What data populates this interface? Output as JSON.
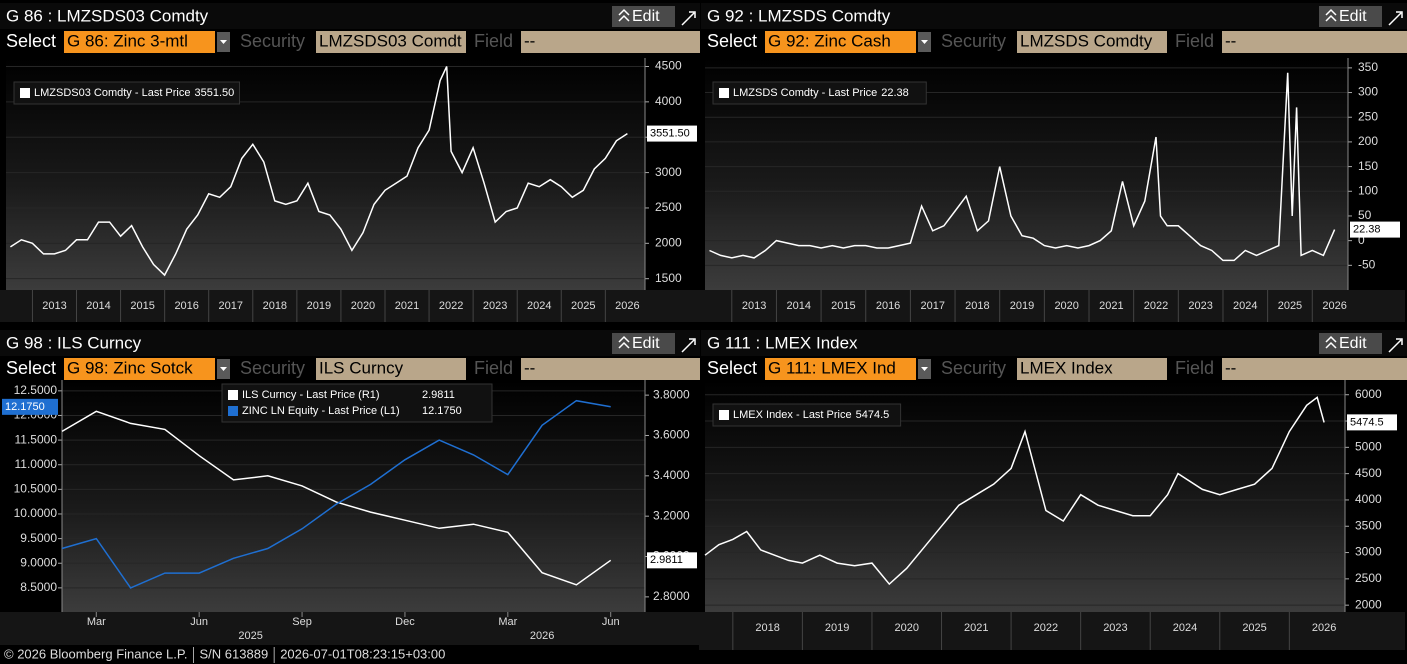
{
  "panels": [
    {
      "title": "G 86 : LMZSDS03 Comdty",
      "edit": "Edit",
      "select_label": "Select",
      "select": "G 86: Zinc 3-mtl",
      "security_label": "Security",
      "security": "LMZSDS03 Comdt",
      "field_label": "Field",
      "field": "--"
    },
    {
      "title": "G 92 : LMZSDS Comdty",
      "edit": "Edit",
      "select_label": "Select",
      "select": "G 92: Zinc Cash",
      "security_label": "Security",
      "security": "LMZSDS Comdty",
      "field_label": "Field",
      "field": "--"
    },
    {
      "title": "G 98 : ILS Curncy",
      "edit": "Edit",
      "select_label": "Select",
      "select": "G 98: Zinc Sotck",
      "security_label": "Security",
      "security": "ILS Curncy",
      "field_label": "Field",
      "field": "--"
    },
    {
      "title": "G 111 : LMEX Index",
      "edit": "Edit",
      "select_label": "Select",
      "select": "G 111: LMEX Ind",
      "security_label": "Security",
      "security": "LMEX Index",
      "field_label": "Field",
      "field": "--"
    }
  ],
  "chart_data": [
    {
      "type": "line",
      "xlim": [
        2012.4,
        2026.9
      ],
      "ylim": [
        1340,
        4620
      ],
      "yticks": [
        1500,
        2000,
        2500,
        3000,
        3500,
        4000,
        4500
      ],
      "xticks": [
        2013,
        2014,
        2015,
        2016,
        2017,
        2018,
        2019,
        2020,
        2021,
        2022,
        2023,
        2024,
        2025,
        2026
      ],
      "grid": true,
      "x": [
        2012.5,
        2012.75,
        2013.0,
        2013.25,
        2013.5,
        2013.75,
        2014.0,
        2014.25,
        2014.5,
        2014.75,
        2015.0,
        2015.25,
        2015.5,
        2015.75,
        2016.0,
        2016.25,
        2016.5,
        2016.75,
        2017.0,
        2017.25,
        2017.5,
        2017.75,
        2018.0,
        2018.25,
        2018.5,
        2018.75,
        2019.0,
        2019.25,
        2019.5,
        2019.75,
        2020.0,
        2020.25,
        2020.5,
        2020.75,
        2021.0,
        2021.25,
        2021.5,
        2021.75,
        2022.0,
        2022.25,
        2022.4,
        2022.5,
        2022.75,
        2023.0,
        2023.25,
        2023.5,
        2023.75,
        2024.0,
        2024.25,
        2024.5,
        2024.75,
        2025.0,
        2025.25,
        2025.5,
        2025.75,
        2026.0,
        2026.25,
        2026.5
      ],
      "series": [
        {
          "name": "LMZSDS03 Comdty - Last Price",
          "color": "#ffffff",
          "last_label": "3551.50",
          "values": [
            1950,
            2050,
            2000,
            1850,
            1850,
            1900,
            2050,
            2050,
            2300,
            2300,
            2100,
            2250,
            1950,
            1700,
            1550,
            1850,
            2200,
            2400,
            2700,
            2650,
            2800,
            3200,
            3400,
            3150,
            2600,
            2550,
            2600,
            2850,
            2450,
            2400,
            2200,
            1900,
            2150,
            2550,
            2750,
            2850,
            2950,
            3350,
            3600,
            4300,
            4500,
            3300,
            3000,
            3350,
            2850,
            2300,
            2450,
            2500,
            2850,
            2800,
            2900,
            2800,
            2650,
            2750,
            3050,
            3200,
            3450,
            3551.5
          ]
        }
      ]
    },
    {
      "type": "line",
      "xlim": [
        2012.4,
        2026.8
      ],
      "ylim": [
        -100,
        370
      ],
      "yticks": [
        -50,
        0,
        50,
        100,
        150,
        200,
        250,
        300,
        350
      ],
      "xticks": [
        2013,
        2014,
        2015,
        2016,
        2017,
        2018,
        2019,
        2020,
        2021,
        2022,
        2023,
        2024,
        2025,
        2026
      ],
      "grid": true,
      "x": [
        2012.5,
        2012.75,
        2013.0,
        2013.25,
        2013.5,
        2013.75,
        2014.0,
        2014.25,
        2014.5,
        2014.75,
        2015.0,
        2015.25,
        2015.5,
        2015.75,
        2016.0,
        2016.25,
        2016.5,
        2016.75,
        2017.0,
        2017.25,
        2017.5,
        2017.75,
        2018.0,
        2018.25,
        2018.5,
        2018.75,
        2019.0,
        2019.25,
        2019.5,
        2019.75,
        2020.0,
        2020.25,
        2020.5,
        2020.75,
        2021.0,
        2021.25,
        2021.5,
        2021.75,
        2022.0,
        2022.25,
        2022.5,
        2022.6,
        2022.75,
        2023.0,
        2023.25,
        2023.5,
        2023.75,
        2024.0,
        2024.25,
        2024.5,
        2024.75,
        2025.0,
        2025.25,
        2025.45,
        2025.55,
        2025.65,
        2025.75,
        2026.0,
        2026.25,
        2026.5
      ],
      "series": [
        {
          "name": "LMZSDS Comdty - Last Price",
          "color": "#ffffff",
          "last_label": "22.38",
          "values": [
            -20,
            -30,
            -35,
            -30,
            -35,
            -20,
            0,
            -5,
            -10,
            -10,
            -15,
            -10,
            -15,
            -10,
            -10,
            -15,
            -15,
            -10,
            -5,
            70,
            20,
            30,
            60,
            90,
            20,
            40,
            150,
            50,
            10,
            5,
            -10,
            -15,
            -10,
            -15,
            -10,
            0,
            20,
            120,
            30,
            80,
            210,
            50,
            30,
            30,
            10,
            -10,
            -20,
            -40,
            -40,
            -20,
            -30,
            -20,
            -10,
            340,
            50,
            270,
            -30,
            -20,
            -30,
            22.38
          ]
        }
      ]
    },
    {
      "type": "line",
      "xlim": [
        "2025-02",
        "2026-07"
      ],
      "ylim": [
        8.01,
        12.72
      ],
      "y2lim": [
        2.725,
        3.875
      ],
      "yticks": [
        {
          "value": 8.5,
          "label": "8.5000"
        },
        {
          "value": 9,
          "label": "9.0000"
        },
        {
          "value": 9.5,
          "label": "9.5000"
        },
        {
          "value": 10,
          "label": "10.0000"
        },
        {
          "value": 10.5,
          "label": "10.5000"
        },
        {
          "value": 11,
          "label": "11.0000"
        },
        {
          "value": 11.5,
          "label": "11.5000"
        },
        {
          "value": 12,
          "label": "12.0000"
        },
        {
          "value": 12.5,
          "label": "12.5000"
        }
      ],
      "y2ticks": [
        {
          "value": 2.8,
          "label": "2.8000"
        },
        {
          "value": 3,
          "label": "3.0000"
        },
        {
          "value": 3.2,
          "label": "3.2000"
        },
        {
          "value": 3.4,
          "label": "3.4000"
        },
        {
          "value": 3.6,
          "label": "3.6000"
        },
        {
          "value": 3.8,
          "label": "3.8000"
        }
      ],
      "xticks": [
        {
          "value": "2025-03",
          "label": "Mar"
        },
        {
          "value": "2025-06",
          "label": "Jun"
        },
        {
          "value": "2025-09",
          "label": "Sep"
        },
        {
          "value": "2025-12",
          "label": "Dec"
        },
        {
          "value": "2026-03",
          "label": "Mar"
        },
        {
          "value": "2026-06",
          "label": "Jun"
        }
      ],
      "xyears": [
        "2025",
        "2026"
      ],
      "grid": true,
      "x": [
        "2025-02",
        "2025-03",
        "2025-04",
        "2025-05",
        "2025-06",
        "2025-07",
        "2025-08",
        "2025-09",
        "2025-10",
        "2025-11",
        "2025-12",
        "2026-01",
        "2026-02",
        "2026-03",
        "2026-04",
        "2026-05",
        "2026-06"
      ],
      "series": [
        {
          "name": "ILS Curncy - Last Price (R1)",
          "color": "#ffffff",
          "axis": "y2",
          "last_label": "2.9811",
          "values": [
            3.62,
            3.72,
            3.66,
            3.63,
            3.5,
            3.38,
            3.4,
            3.35,
            3.27,
            3.22,
            3.18,
            3.14,
            3.16,
            3.12,
            2.92,
            2.86,
            2.9811
          ]
        },
        {
          "name": "ZINC LN Equity - Last Price (L1)",
          "color": "#1f6fd1",
          "last_label": "12.1750",
          "values": [
            9.3,
            9.5,
            8.5,
            8.8,
            8.8,
            9.1,
            9.3,
            9.7,
            10.2,
            10.6,
            11.1,
            11.5,
            11.2,
            10.8,
            11.8,
            12.3,
            12.175
          ]
        }
      ]
    },
    {
      "type": "line",
      "xlim": [
        2017.6,
        2026.8
      ],
      "ylim": [
        1870,
        6280
      ],
      "yticks": [
        2000,
        2500,
        3000,
        3500,
        4000,
        4500,
        5000,
        5500,
        6000
      ],
      "xticks": [
        2018,
        2019,
        2020,
        2021,
        2022,
        2023,
        2024,
        2025,
        2026
      ],
      "grid": true,
      "x": [
        2017.6,
        2017.8,
        2018.0,
        2018.2,
        2018.4,
        2018.6,
        2018.8,
        2019.0,
        2019.25,
        2019.5,
        2019.75,
        2020.0,
        2020.25,
        2020.5,
        2020.75,
        2021.0,
        2021.25,
        2021.5,
        2021.75,
        2022.0,
        2022.2,
        2022.5,
        2022.75,
        2023.0,
        2023.25,
        2023.5,
        2023.75,
        2024.0,
        2024.25,
        2024.4,
        2024.75,
        2025.0,
        2025.25,
        2025.5,
        2025.75,
        2026.0,
        2026.25,
        2026.4,
        2026.5
      ],
      "series": [
        {
          "name": "LMEX Index - Last Price",
          "color": "#ffffff",
          "last_label": "5474.5",
          "values": [
            2950,
            3150,
            3250,
            3400,
            3050,
            2950,
            2850,
            2800,
            2950,
            2800,
            2750,
            2800,
            2400,
            2700,
            3100,
            3500,
            3900,
            4100,
            4300,
            4600,
            5300,
            3800,
            3600,
            4100,
            3900,
            3800,
            3700,
            3700,
            4100,
            4500,
            4200,
            4100,
            4200,
            4300,
            4600,
            5300,
            5800,
            5950,
            5474.5
          ]
        }
      ]
    }
  ],
  "footer": {
    "copyright": "© 2026 Bloomberg Finance L.P.",
    "serial": "S/N 613889",
    "timestamp": "2026-07-01T08:23:15+03:00"
  }
}
